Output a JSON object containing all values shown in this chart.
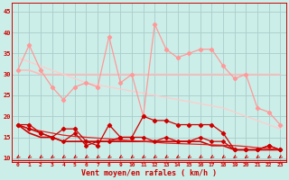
{
  "bg_color": "#cceee8",
  "grid_color": "#aacccc",
  "xlabel": "Vent moyen/en rafales ( km/h )",
  "ylim": [
    9,
    47
  ],
  "yticks": [
    10,
    15,
    20,
    25,
    30,
    35,
    40,
    45
  ],
  "x_labels": [
    "0",
    "1",
    "2",
    "3",
    "4",
    "5",
    "6",
    "7",
    "8",
    "9",
    "10",
    "11",
    "12",
    "13",
    "14",
    "15",
    "16",
    "17",
    "18",
    "19",
    "20",
    "21",
    "22",
    "23"
  ],
  "line_light_jagged": [
    31,
    37,
    31,
    27,
    24,
    27,
    28,
    27,
    39,
    28,
    30,
    20,
    42,
    36,
    34,
    35,
    36,
    36,
    32,
    29,
    30,
    22,
    21,
    18
  ],
  "line_light_flat": [
    31,
    31,
    30,
    30,
    30,
    30,
    30,
    30,
    30,
    30,
    30,
    30,
    30,
    30,
    30,
    30,
    30,
    30,
    30,
    30,
    30,
    30,
    30,
    30
  ],
  "line_light_trend": [
    34,
    33,
    32,
    31,
    30,
    29,
    28,
    27.5,
    27,
    26.5,
    26,
    25.5,
    25,
    24.5,
    24,
    23.5,
    23,
    22.5,
    22,
    21,
    20,
    19,
    18,
    17
  ],
  "line_dark_jagged1": [
    18,
    18,
    16,
    15,
    17,
    17,
    14,
    13,
    18,
    15,
    15,
    20,
    19,
    19,
    18,
    18,
    18,
    18,
    16,
    12,
    12,
    12,
    13,
    12
  ],
  "line_dark_jagged2": [
    18,
    17,
    16,
    15,
    14,
    16,
    13,
    14,
    14,
    15,
    15,
    15,
    14,
    15,
    14,
    14,
    15,
    14,
    14,
    12,
    12,
    12,
    13,
    12
  ],
  "line_dark_flat": [
    18,
    16,
    15,
    15,
    14,
    14,
    14,
    14,
    14,
    14,
    14,
    14,
    14,
    14,
    14,
    14,
    14,
    13,
    13,
    12,
    12,
    12,
    12,
    12
  ],
  "line_dark_trend": [
    18,
    17,
    16.5,
    16,
    15.5,
    15.2,
    15.0,
    14.8,
    14.6,
    14.4,
    14.2,
    14.0,
    13.8,
    13.6,
    13.5,
    13.4,
    13.3,
    13.2,
    13.1,
    13.0,
    12.8,
    12.5,
    12.3,
    12.0
  ],
  "light_jagged_color": "#ff9999",
  "light_flat_color": "#ffbbbb",
  "light_trend_color": "#ffcccc",
  "dark_color": "#cc0000",
  "dark_flat_color": "#cc0000",
  "dark_trend_color": "#dd2222",
  "axis_color": "#cc0000",
  "arrow_color": "#cc0000"
}
